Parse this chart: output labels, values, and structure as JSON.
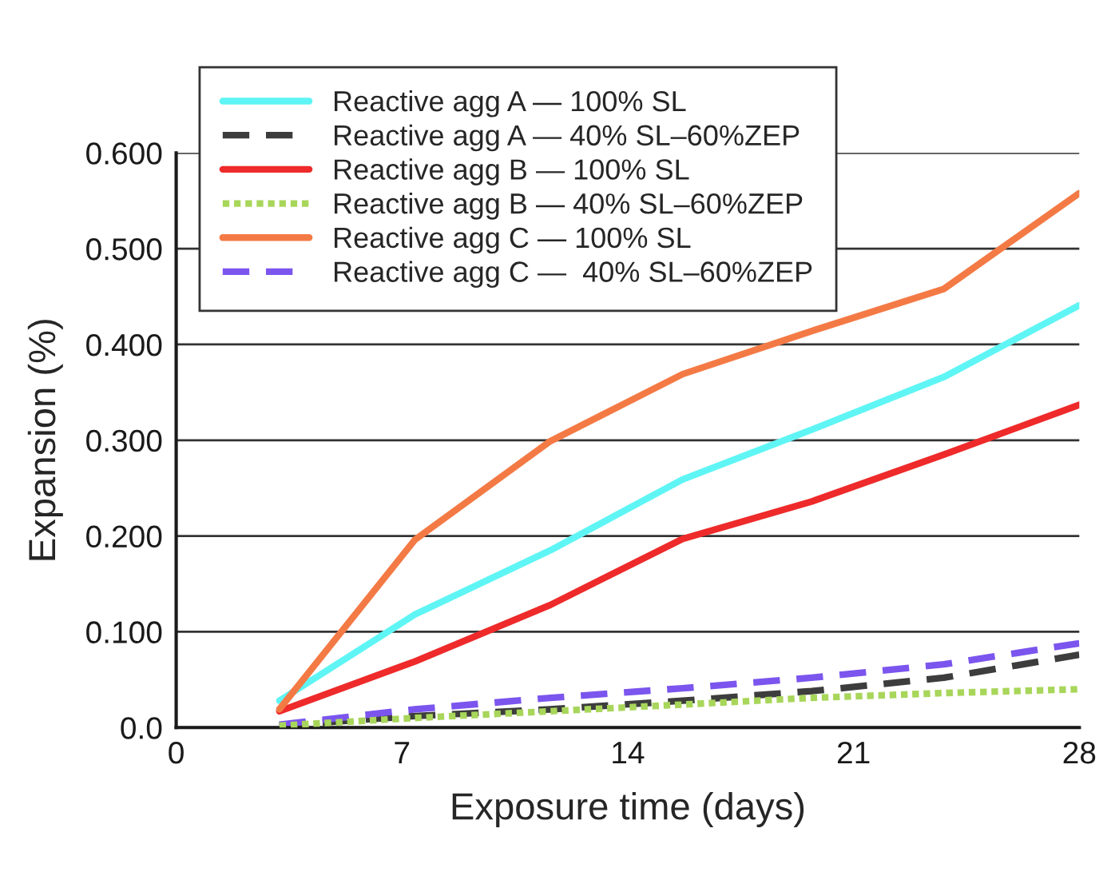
{
  "chart_data": {
    "type": "line",
    "xlabel": "Exposure time (days)",
    "ylabel": "Expansion (%)",
    "x": [
      3.2,
      7.4,
      11.6,
      15.7,
      19.7,
      23.8,
      28
    ],
    "series": [
      {
        "name": "Reactive agg A — 100% SL",
        "color": "#5ff5f5",
        "line_style": "solid",
        "values": [
          0.028,
          0.118,
          0.185,
          0.259,
          0.311,
          0.366,
          0.441
        ]
      },
      {
        "name": "Reactive agg A — 40% SL–60%ZEP",
        "color": "#3d3d3d",
        "line_style": "dashed",
        "values": [
          0.002,
          0.012,
          0.019,
          0.028,
          0.038,
          0.052,
          0.076
        ]
      },
      {
        "name": "Reactive agg B — 100% SL",
        "color": "#ee2a2a",
        "line_style": "solid",
        "values": [
          0.017,
          0.069,
          0.128,
          0.197,
          0.236,
          0.285,
          0.337
        ]
      },
      {
        "name": "Reactive agg B — 40% SL–60%ZEP",
        "color": "#a8d65a",
        "line_style": "dotted",
        "values": [
          0.002,
          0.01,
          0.017,
          0.024,
          0.031,
          0.036,
          0.04
        ]
      },
      {
        "name": "Reactive agg C — 100% SL",
        "color": "#f47a45",
        "line_style": "solid",
        "values": [
          0.019,
          0.196,
          0.299,
          0.369,
          0.414,
          0.458,
          0.558
        ]
      },
      {
        "name": "Reactive agg C —  40% SL–60%ZEP",
        "color": "#7b55ee",
        "line_style": "dashed",
        "values": [
          0.003,
          0.019,
          0.031,
          0.041,
          0.052,
          0.066,
          0.088
        ]
      }
    ],
    "xlim": [
      0,
      28
    ],
    "xticks": [
      0,
      7,
      14,
      21,
      28
    ],
    "ylim": [
      0,
      0.6
    ],
    "yticks": [
      {
        "value": 0,
        "label": "0.0"
      },
      {
        "value": 0.1,
        "label": "0.100"
      },
      {
        "value": 0.2,
        "label": "0.200"
      },
      {
        "value": 0.3,
        "label": "0.300"
      },
      {
        "value": 0.4,
        "label": "0.400"
      },
      {
        "value": 0.5,
        "label": "0.500"
      },
      {
        "value": 0.6,
        "label": "0.600"
      }
    ],
    "grid": "y",
    "legend": "top left"
  }
}
